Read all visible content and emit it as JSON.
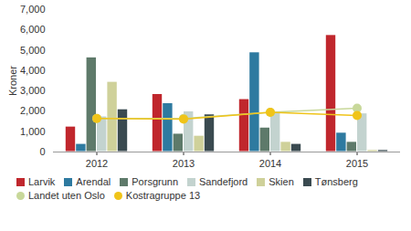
{
  "chart_data": {
    "type": "bar",
    "ylabel": "Kroner",
    "categories": [
      "2012",
      "2013",
      "2014",
      "2015"
    ],
    "ylim": [
      0,
      7000
    ],
    "yticks": [
      0,
      1000,
      2000,
      3000,
      4000,
      5000,
      6000,
      7000
    ],
    "grid": false,
    "legend": "bottom",
    "series": [
      {
        "name": "Larvik",
        "color": "#c0272d",
        "values": [
          1250,
          2850,
          2600,
          5750
        ]
      },
      {
        "name": "Arendal",
        "color": "#2e7aa0",
        "values": [
          400,
          2400,
          4900,
          950
        ]
      },
      {
        "name": "Porsgrunn",
        "color": "#5e7a6a",
        "values": [
          4650,
          900,
          1200,
          500
        ]
      },
      {
        "name": "Sandefjord",
        "color": "#c3d3cf",
        "values": [
          1750,
          2000,
          1950,
          1900
        ]
      },
      {
        "name": "Skien",
        "color": "#cfd19a",
        "values": [
          3450,
          800,
          500,
          100
        ]
      },
      {
        "name": "Tønsberg",
        "color": "#3a4a50",
        "values": [
          2100,
          1850,
          400,
          100
        ]
      },
      {
        "name": "Landet uten Oslo",
        "type": "line",
        "marker": "circle",
        "color": "#c8d89a",
        "values": [
          1650,
          1650,
          1950,
          2150
        ]
      },
      {
        "name": "Kostragruppe 13",
        "type": "line",
        "marker": "circle",
        "color": "#f0c419",
        "values": [
          1650,
          1620,
          1950,
          1800
        ]
      }
    ]
  }
}
